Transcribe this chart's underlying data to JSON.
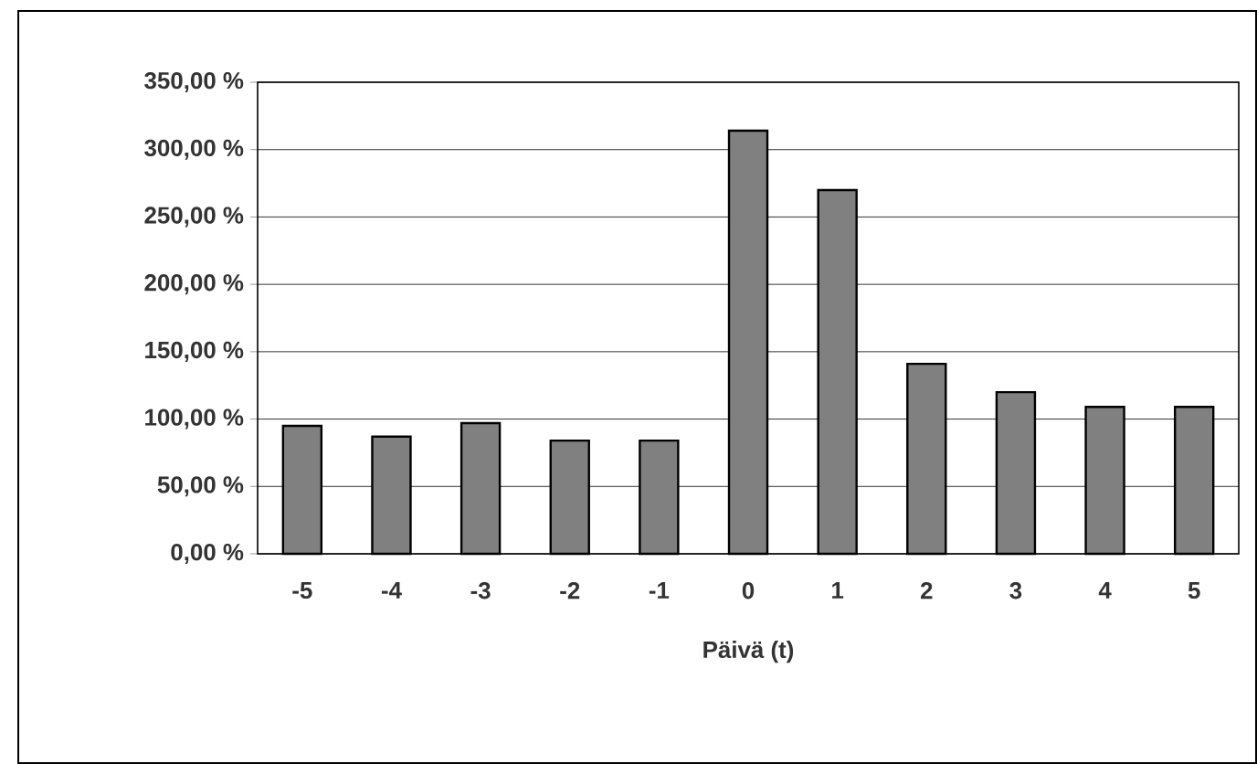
{
  "chart_data": {
    "type": "bar",
    "xlabel": "Päivä (t)",
    "categories": [
      "-5",
      "-4",
      "-3",
      "-2",
      "-1",
      "0",
      "1",
      "2",
      "3",
      "4",
      "5"
    ],
    "values": [
      95,
      87,
      97,
      84,
      84,
      314,
      270,
      141,
      120,
      109,
      109
    ],
    "color": "#808080",
    "ylim": [
      0,
      350
    ],
    "yticks": [
      {
        "value": 0,
        "label": "0,00 %"
      },
      {
        "value": 50,
        "label": "50,00 %"
      },
      {
        "value": 100,
        "label": "100,00 %"
      },
      {
        "value": 150,
        "label": "150,00 %"
      },
      {
        "value": 200,
        "label": "200,00 %"
      },
      {
        "value": 250,
        "label": "250,00 %"
      },
      {
        "value": 300,
        "label": "300,00 %"
      },
      {
        "value": 350,
        "label": "350,00 %"
      }
    ],
    "grid": "y"
  }
}
